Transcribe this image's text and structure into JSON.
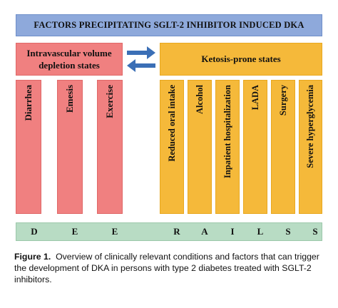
{
  "title": "FACTORS PRECIPITATING SGLT-2 INHIBITOR INDUCED DKA",
  "left_group": {
    "label": "Intravascular volume depletion states",
    "items": [
      "Diarrhea",
      "Emesis",
      "Exercise"
    ]
  },
  "right_group": {
    "label": "Ketosis-prone states",
    "items": [
      "Reduced oral intake",
      "Alcohol",
      "Inpatient hospitalization",
      "LADA",
      "Surgery",
      "Severe hyperglycemia"
    ]
  },
  "mnemonic": [
    "D",
    "E",
    "E",
    "R",
    "A",
    "I",
    "L",
    "S",
    "S"
  ],
  "colors": {
    "title_bg": "#8ea9db",
    "left_bg": "#f08080",
    "right_bg": "#f5b93a",
    "mnemonic_bg": "#b8dcc4",
    "arrow": "#3b6fb6"
  },
  "caption": {
    "label": "Figure 1.",
    "text": "Overview of clinically relevant conditions and factors that can trigger the development of DKA in persons with type 2 diabetes treated with SGLT-2 inhibitors."
  }
}
